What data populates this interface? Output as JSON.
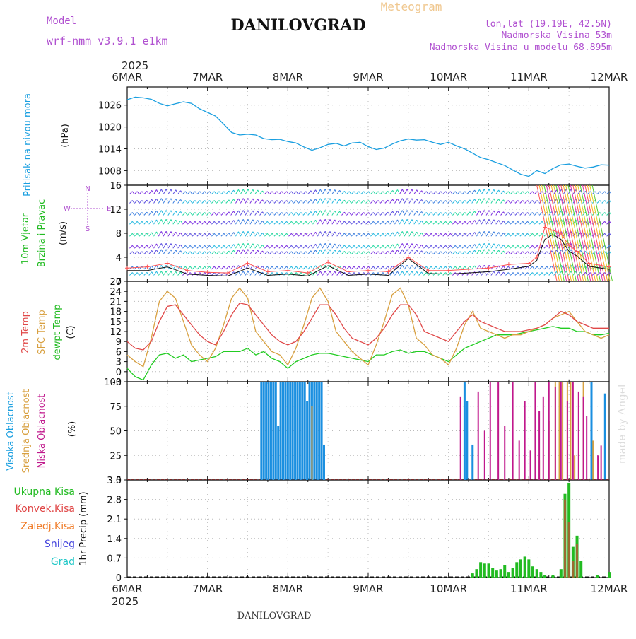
{
  "header": {
    "title": "DANILOVGRAD",
    "product": "Meteogram",
    "model_label": "Model",
    "model_name": "wrf-nmm_v3.9.1 e1km",
    "location": "lon,lat (19.19E, 42.5N)",
    "altitude": "Nadmorska Visina 53m",
    "model_altitude": "Nadmorska Visina u modelu 68.895m",
    "footer_title": "DANILOVGRAD",
    "credit": "made by Angel"
  },
  "colors": {
    "pressure": "#1a9fe0",
    "wind_label": "#22bb22",
    "temp2m": "#e04848",
    "sfc": "#d8a040",
    "dewpt": "#22cc22",
    "high_cloud": "#1a8fe0",
    "mid_cloud": "#d8a040",
    "low_cloud": "#c0188c",
    "precip_total": "#22bb22",
    "precip_conv": "#e04848",
    "precip_frozen": "#f07c28",
    "snow": "#4444dd",
    "hail": "#22c8c8",
    "purple_text": "#b050d0",
    "peach_text": "#f0c890"
  },
  "time_axis": {
    "year": "2025",
    "labels": [
      "6MAR",
      "7MAR",
      "8MAR",
      "9MAR",
      "10MAR",
      "11MAR",
      "12MAR"
    ]
  },
  "chart_data": [
    {
      "type": "line",
      "name": "pressure",
      "ylabel": "Pritisak na nivou mora",
      "unit": "(hPa)",
      "ylim": [
        1004,
        1031
      ],
      "yticks": [
        1008,
        1014,
        1020,
        1026
      ],
      "x": [
        0,
        0.1,
        0.2,
        0.3,
        0.4,
        0.5,
        0.6,
        0.7,
        0.8,
        0.9,
        1.0,
        1.1,
        1.2,
        1.3,
        1.4,
        1.5,
        1.6,
        1.7,
        1.8,
        1.9,
        2.0,
        2.1,
        2.2,
        2.3,
        2.4,
        2.5,
        2.6,
        2.7,
        2.8,
        2.9,
        3.0,
        3.1,
        3.2,
        3.3,
        3.4,
        3.5,
        3.6,
        3.7,
        3.8,
        3.9,
        4.0,
        4.1,
        4.2,
        4.3,
        4.4,
        4.5,
        4.6,
        4.7,
        4.8,
        4.9,
        5.0,
        5.1,
        5.2,
        5.3,
        5.4,
        5.5,
        5.6,
        5.7,
        5.8,
        5.9,
        6.0
      ],
      "series": [
        {
          "values": [
            1027.5,
            1028.2,
            1028.0,
            1027.6,
            1026.5,
            1025.8,
            1026.4,
            1026.9,
            1026.5,
            1025.0,
            1024.0,
            1023.0,
            1020.8,
            1018.5,
            1017.8,
            1018.0,
            1017.8,
            1016.8,
            1016.5,
            1016.6,
            1016.0,
            1015.6,
            1014.5,
            1013.6,
            1014.3,
            1015.2,
            1015.5,
            1014.8,
            1015.6,
            1015.8,
            1014.6,
            1013.8,
            1014.2,
            1015.3,
            1016.2,
            1016.7,
            1016.4,
            1016.5,
            1015.8,
            1015.2,
            1015.8,
            1014.8,
            1014.0,
            1012.8,
            1011.6,
            1011.0,
            1010.2,
            1009.4,
            1008.2,
            1007.0,
            1006.4,
            1008.0,
            1007.2,
            1008.6,
            1009.6,
            1009.8,
            1009.2,
            1008.7,
            1009.0,
            1009.6,
            1009.5
          ]
        }
      ]
    },
    {
      "type": "line",
      "name": "wind",
      "ylabel": [
        "10m Vjetar",
        "Brzina i Pravac"
      ],
      "unit": "(m/s)",
      "compass": {
        "n": "N",
        "s": "S",
        "e": "E",
        "w": "W"
      },
      "ylim": [
        0,
        16
      ],
      "yticks": [
        0,
        4,
        8,
        12,
        16
      ],
      "x": [
        0,
        0.25,
        0.5,
        0.75,
        1.0,
        1.25,
        1.5,
        1.75,
        2.0,
        2.25,
        2.5,
        2.75,
        3.0,
        3.25,
        3.5,
        3.75,
        4.0,
        4.25,
        4.5,
        4.75,
        5.0,
        5.1,
        5.2,
        5.3,
        5.4,
        5.5,
        5.6,
        5.75,
        6.0
      ],
      "series": [
        {
          "name": "speed",
          "values": [
            1.8,
            1.8,
            2.4,
            1.2,
            1.0,
            0.9,
            2.2,
            1.0,
            1.2,
            0.9,
            2.6,
            1.0,
            1.2,
            1.0,
            3.8,
            1.3,
            1.2,
            1.4,
            1.6,
            2.0,
            2.5,
            3.5,
            7.0,
            7.8,
            7.0,
            5.0,
            4.2,
            2.5,
            2.0
          ]
        },
        {
          "name": "gust",
          "values": [
            2.2,
            2.4,
            3.0,
            1.8,
            1.5,
            1.4,
            3.0,
            1.6,
            1.8,
            1.4,
            3.2,
            1.6,
            1.8,
            1.6,
            4.0,
            1.8,
            1.8,
            2.0,
            2.2,
            2.8,
            3.0,
            4.0,
            9.0,
            8.5,
            8.0,
            6.0,
            5.0,
            3.0,
            2.4
          ]
        }
      ]
    },
    {
      "type": "line",
      "name": "temperature",
      "ylabel": [
        "2m Temp",
        "SFC Temp",
        "dewpt Temp"
      ],
      "unit": "(C)",
      "ylim": [
        -3,
        27
      ],
      "yticks": [
        -3,
        0,
        3,
        6,
        9,
        12,
        15,
        18,
        21,
        24,
        27
      ],
      "x": [
        0,
        0.1,
        0.2,
        0.3,
        0.4,
        0.5,
        0.6,
        0.7,
        0.8,
        0.9,
        1.0,
        1.1,
        1.2,
        1.3,
        1.4,
        1.5,
        1.6,
        1.7,
        1.8,
        1.9,
        2.0,
        2.1,
        2.2,
        2.3,
        2.4,
        2.5,
        2.6,
        2.7,
        2.8,
        2.9,
        3.0,
        3.1,
        3.2,
        3.3,
        3.4,
        3.5,
        3.6,
        3.7,
        3.8,
        3.9,
        4.0,
        4.1,
        4.2,
        4.3,
        4.4,
        4.5,
        4.6,
        4.7,
        4.8,
        4.9,
        5.0,
        5.1,
        5.2,
        5.3,
        5.4,
        5.5,
        5.6,
        5.7,
        5.8,
        5.9,
        6.0
      ],
      "series": [
        {
          "name": "2m Temp",
          "values": [
            9,
            7,
            6.5,
            9,
            15,
            19.5,
            20,
            17,
            14,
            11,
            9,
            8,
            12,
            17,
            20.5,
            20,
            17,
            14,
            11,
            9,
            8,
            9,
            12,
            16,
            20,
            20,
            17,
            13,
            10,
            9,
            8,
            10,
            13,
            17,
            20,
            20,
            17,
            12,
            11,
            10,
            9,
            12,
            15,
            17,
            15,
            14,
            13,
            12,
            12,
            12,
            12.5,
            13,
            14,
            16,
            18,
            17,
            15,
            14,
            13,
            13,
            13
          ]
        },
        {
          "name": "SFC Temp",
          "values": [
            5,
            3,
            1.5,
            10,
            21,
            24,
            22,
            15,
            8,
            5,
            3,
            7,
            14,
            22,
            25,
            22,
            12,
            9,
            6,
            5,
            2,
            7,
            14,
            22,
            25,
            21,
            12,
            9,
            6,
            4,
            2,
            8,
            15,
            23,
            25,
            20,
            10,
            8,
            5,
            4,
            2,
            7,
            14,
            18,
            13,
            12,
            11,
            10,
            11,
            11,
            12,
            13,
            14,
            16,
            17,
            18,
            15,
            12,
            11,
            10,
            11
          ]
        },
        {
          "name": "dewpt Temp",
          "values": [
            1,
            -1.5,
            -2.5,
            2,
            5,
            5.5,
            4,
            5,
            3,
            3.5,
            4,
            4.5,
            6,
            6,
            6,
            7,
            5,
            6,
            4,
            3,
            1,
            3,
            4,
            5,
            5.5,
            5.5,
            5,
            4.5,
            4,
            3.5,
            3,
            5,
            5,
            6,
            6.5,
            5.5,
            6,
            6,
            5,
            4,
            3,
            5,
            7,
            8,
            9,
            10,
            11,
            11,
            11,
            11.5,
            12,
            12.5,
            13,
            13.5,
            13,
            13,
            12,
            12,
            11,
            11,
            11.5
          ]
        }
      ]
    },
    {
      "type": "bar",
      "name": "cloud",
      "ylabel": [
        "Visoka Oblacnost",
        "Srednja Oblacnost",
        "Niska Oblacnost"
      ],
      "unit": "(%)",
      "ylim": [
        0,
        100
      ],
      "yticks": [
        0,
        25,
        50,
        75,
        100
      ],
      "series": [
        {
          "name": "high",
          "x": [
            1.67,
            1.7,
            1.73,
            1.76,
            1.79,
            1.82,
            1.85,
            1.88,
            1.91,
            1.94,
            1.97,
            2.0,
            2.03,
            2.06,
            2.09,
            2.12,
            2.15,
            2.18,
            2.21,
            2.24,
            2.27,
            2.3,
            2.33,
            2.36,
            2.39,
            2.42,
            2.45,
            4.2,
            4.23,
            4.3,
            5.78,
            5.95
          ],
          "values": [
            100,
            100,
            100,
            100,
            100,
            100,
            100,
            55,
            100,
            100,
            100,
            100,
            100,
            100,
            100,
            100,
            100,
            100,
            100,
            80,
            100,
            100,
            100,
            100,
            100,
            100,
            36,
            100,
            80,
            36,
            100,
            88
          ]
        },
        {
          "name": "mid",
          "x": [
            2.3,
            5.13,
            5.25,
            5.33,
            5.38,
            5.42,
            5.48,
            5.52,
            5.57,
            5.68,
            5.8
          ],
          "values": [
            75,
            20,
            60,
            100,
            100,
            100,
            100,
            100,
            25,
            100,
            40
          ]
        },
        {
          "name": "low",
          "x": [
            4.15,
            4.37,
            4.45,
            4.52,
            4.62,
            4.7,
            4.8,
            4.88,
            4.95,
            5.02,
            5.08,
            5.13,
            5.18,
            5.25,
            5.33,
            5.4,
            5.48,
            5.55,
            5.62,
            5.68,
            5.72,
            5.86,
            5.9
          ],
          "values": [
            85,
            90,
            50,
            100,
            100,
            55,
            100,
            40,
            80,
            30,
            100,
            70,
            85,
            100,
            95,
            100,
            80,
            100,
            90,
            85,
            65,
            25,
            35
          ]
        }
      ]
    },
    {
      "type": "bar",
      "name": "precipitation",
      "ylabel": "1hr Precip (mm)",
      "legend": [
        "Ukupna Kisa",
        "Konvek.Kisa",
        "Zaledj.Kisa",
        "Snijeg",
        "Grad"
      ],
      "ylim": [
        0,
        3.5
      ],
      "yticks": [
        0,
        0.7,
        1.4,
        2.1,
        2.8,
        3.5
      ],
      "series": [
        {
          "name": "total",
          "x": [
            4.3,
            4.35,
            4.4,
            4.45,
            4.5,
            4.55,
            4.6,
            4.65,
            4.7,
            4.75,
            4.8,
            4.85,
            4.9,
            4.95,
            5.0,
            5.05,
            5.1,
            5.15,
            5.2,
            5.3,
            5.4,
            5.45,
            5.5,
            5.55,
            5.6,
            5.65,
            5.85,
            6.0
          ],
          "values": [
            0.15,
            0.3,
            0.55,
            0.5,
            0.5,
            0.35,
            0.25,
            0.3,
            0.45,
            0.2,
            0.35,
            0.55,
            0.65,
            0.75,
            0.65,
            0.4,
            0.3,
            0.2,
            0.1,
            0.1,
            0.3,
            3.0,
            3.4,
            1.1,
            1.5,
            0.6,
            0.1,
            0.2
          ]
        },
        {
          "name": "convective",
          "x": [
            5.45,
            5.5,
            5.55,
            5.6
          ],
          "values": [
            2.8,
            2.0,
            0.6,
            1.2
          ]
        }
      ]
    }
  ]
}
